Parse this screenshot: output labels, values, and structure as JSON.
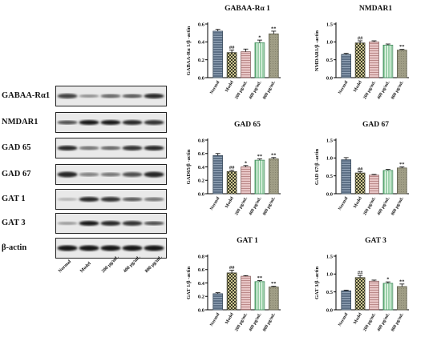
{
  "blot": {
    "proteins": [
      "GABAA-Rα1",
      "NMDAR1",
      "GAD 65",
      "GAD 67",
      "GAT 1",
      "GAT 3",
      "β-actin"
    ],
    "lanes": [
      "Normal",
      "Model",
      "200 μg/mL",
      "400 μg/mL",
      "800 μg/mL"
    ]
  },
  "styles": {
    "fills": [
      "#5d7086",
      "#cfc890",
      "#e8c6c6",
      "#b4e3c2",
      "#a09e86"
    ],
    "strokes": [
      "#3f4f60",
      "#3b3b2a",
      "#8a6060",
      "#3f8a5a",
      "#5c5a48"
    ],
    "patterns": [
      "hlines",
      "checker",
      "hlines-red",
      "vlines-green",
      "dense"
    ]
  },
  "chart_data": [
    {
      "type": "bar",
      "title": "GABAA-Rα 1",
      "ylabel": "GABAA-Rα 1/β -actin",
      "categories": [
        "Normal",
        "Model",
        "200 μg/mL",
        "400 μg/mL",
        "800 μg/mL"
      ],
      "values": [
        0.52,
        0.28,
        0.29,
        0.39,
        0.49
      ],
      "errors": [
        0.02,
        0.03,
        0.03,
        0.03,
        0.03
      ],
      "annotations": [
        "",
        "##",
        "",
        "*",
        "**"
      ],
      "ylim": [
        0,
        0.6
      ],
      "yticks": [
        "0.0",
        "0.2",
        "0.4",
        "0.6"
      ]
    },
    {
      "type": "bar",
      "title": "NMDAR1",
      "ylabel": "NMDAR1/β -actin",
      "categories": [
        "Normal",
        "Model",
        "200 μg/mL",
        "400 μg/mL",
        "800 μg/mL"
      ],
      "values": [
        0.65,
        0.97,
        1.0,
        0.91,
        0.77
      ],
      "errors": [
        0.03,
        0.06,
        0.03,
        0.03,
        0.02
      ],
      "annotations": [
        "",
        "##",
        "",
        "",
        "**"
      ],
      "ylim": [
        0,
        1.5
      ],
      "yticks": [
        "0.0",
        "0.5",
        "1.0",
        "1.5"
      ]
    },
    {
      "type": "bar",
      "title": "GAD 65",
      "ylabel": "GAD65/β -actin",
      "categories": [
        "Normal",
        "Model",
        "200 μg/mL",
        "400 μg/mL",
        "800 μg/mL"
      ],
      "values": [
        0.57,
        0.33,
        0.4,
        0.5,
        0.52
      ],
      "errors": [
        0.03,
        0.02,
        0.02,
        0.02,
        0.02
      ],
      "annotations": [
        "",
        "##",
        "*",
        "**",
        "**"
      ],
      "ylim": [
        0,
        0.8
      ],
      "yticks": [
        "0.0",
        "0.2",
        "0.4",
        "0.6",
        "0.8"
      ]
    },
    {
      "type": "bar",
      "title": "GAD 67",
      "ylabel": "GAD 67/β -actin",
      "categories": [
        "Normal",
        "Model",
        "200 μg/mL",
        "400 μg/mL",
        "800 μg/mL"
      ],
      "values": [
        0.95,
        0.58,
        0.52,
        0.65,
        0.72
      ],
      "errors": [
        0.06,
        0.04,
        0.02,
        0.03,
        0.03
      ],
      "annotations": [
        "",
        "##",
        "",
        "",
        "**"
      ],
      "ylim": [
        0,
        1.5
      ],
      "yticks": [
        "0.0",
        "0.5",
        "1.0",
        "1.5"
      ]
    },
    {
      "type": "bar",
      "title": "GAT 1",
      "ylabel": "GAT 1/β -actin",
      "categories": [
        "Normal",
        "Model",
        "200 μg/mL",
        "400 μg/mL",
        "800 μg/mL"
      ],
      "values": [
        0.24,
        0.55,
        0.5,
        0.42,
        0.34
      ],
      "errors": [
        0.015,
        0.04,
        0.01,
        0.015,
        0.01
      ],
      "annotations": [
        "",
        "##",
        "",
        "**",
        "**"
      ],
      "ylim": [
        0,
        0.8
      ],
      "yticks": [
        "0.0",
        "0.2",
        "0.4",
        "0.6",
        "0.8"
      ]
    },
    {
      "type": "bar",
      "title": "GAT 3",
      "ylabel": "GAT 3/β -actin",
      "categories": [
        "Normal",
        "Model",
        "200 μg/mL",
        "400 μg/mL",
        "800 μg/mL"
      ],
      "values": [
        0.53,
        0.9,
        0.8,
        0.74,
        0.65
      ],
      "errors": [
        0.02,
        0.06,
        0.03,
        0.04,
        0.07
      ],
      "annotations": [
        "",
        "##",
        "",
        "*",
        "**"
      ],
      "ylim": [
        0,
        1.5
      ],
      "yticks": [
        "0.0",
        "0.5",
        "1.0",
        "1.5"
      ]
    }
  ]
}
